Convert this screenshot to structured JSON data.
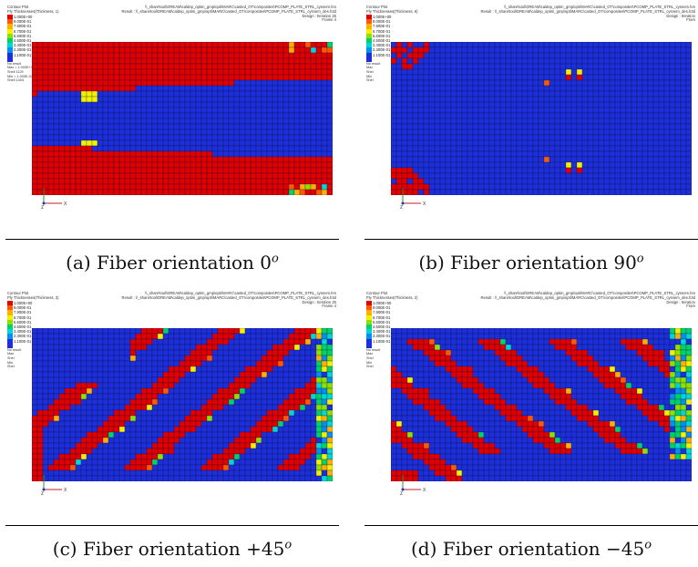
{
  "panels": [
    {
      "id": "a",
      "letter": "(a)",
      "caption": "(a) Fiber orientation 0",
      "superscript": "o",
      "header_left": [
        "Contour Plot",
        "Ply Thicknesses(Thickness, 1)"
      ],
      "header_right": [
        "\\\\_share\\tool\\DREAM\\caldep_optim_gmp\\opti\\MARC\\casted_OT\\composites\\PCOMP_PLATE_STRL_cysnem.hm",
        "Result : \\\\_share\\tool\\DREAM\\caldep_optim_gmp\\opti\\MARC\\casted_OT\\composites\\PCOMP_PLATE_STRL_cysnem_des.h3d",
        "Design : Iteration 25",
        "Frame 4"
      ],
      "legend_top": "1.000E+00",
      "legend_extra": [
        "No result",
        "Max = 1.000E+00",
        "Shell 1129",
        "Min = 1.000E-01",
        "Shell 1404"
      ]
    },
    {
      "id": "b",
      "letter": "(b)",
      "caption": "(b) Fiber orientation 90",
      "superscript": "o",
      "header_left": [
        "Contour Plot",
        "Ply Thicknesses(Thickness, 6)"
      ],
      "header_right": [
        "\\\\_share\\tool\\DREAM\\caldep_optim_gmp\\opti\\MARC\\casted_OT\\composites\\PCOMP_PLATE_STRL_cysnem.hm",
        "Result : \\\\_share\\tool\\DREAM\\caldep_optim_gmp\\opti\\MARC\\casted_OT\\composites\\PCOMP_PLATE_STRL_cysnem_des.h3d",
        "Design : Iteration",
        "Fram"
      ],
      "legend_top": "1.000E+00",
      "legend_extra": [
        "No result",
        "Max",
        "Shel",
        "Min",
        "Shel"
      ]
    },
    {
      "id": "c",
      "letter": "(c)",
      "caption": "(c) Fiber orientation +45",
      "superscript": "o",
      "header_left": [
        "Contour Plot",
        "Ply Thicknesses(Thickness, 3)"
      ],
      "header_right": [
        "\\\\_share\\tool\\DREAM\\caldep_optim_gmp\\opti\\MARC\\casted_OT\\composites\\PCOMP_PLATE_STRL_cysnem.hm",
        "Result : \\\\_share\\tool\\DREAM\\caldep_optim_gmp\\opti\\MARC\\casted_OT\\composites\\PCOMP_PLATE_STRL_cysnem_des.h3d",
        "Design : Iteration 25",
        "Frame 4"
      ],
      "legend_top": "1.000E+00",
      "legend_extra": [
        "No result",
        "Max",
        "Shel",
        "Min",
        "Shel"
      ]
    },
    {
      "id": "d",
      "letter": "(d)",
      "caption": "(d) Fiber orientation −45",
      "superscript": "o",
      "header_left": [
        "Contour Plot",
        "Ply Thicknesses(Thickness, 2)"
      ],
      "header_right": [
        "\\\\_share\\tool\\DREAM\\caldep_optim_gmp\\opti\\MARC\\casted_OT\\composites\\PCOMP_PLATE_STRL_cysnem.hm",
        "Result : \\\\_share\\tool\\DREAM\\caldep_optim_gmp\\opti\\MARC\\casted_OT\\composites\\PCOMP_PLATE_STRL_cysnem_des.h3d",
        "Design : Iteration",
        "Fram"
      ],
      "legend_top": "1.000E+00",
      "legend_extra": [
        "No result",
        "Max",
        "Shel",
        "Min",
        "Shel"
      ]
    }
  ],
  "legend": {
    "labels": [
      "1.000E+00",
      "9.000E-01",
      "7.900E-01",
      "6.700E-01",
      "5.600E-01",
      "4.500E-01",
      "3.400E-01",
      "2.300E-01",
      "1.100E-01"
    ],
    "colors": [
      "#e00000",
      "#ff5a00",
      "#ffb000",
      "#f2f200",
      "#8ee000",
      "#00d26a",
      "#00d6d6",
      "#0090f0",
      "#1c2fd8"
    ]
  },
  "triad_labels": {
    "axis_x": "X",
    "axis_y": "Y",
    "axis_z": "Z"
  },
  "colors": {
    "red": "#e00000",
    "blue": "#1c2fd8",
    "grid": "#0a0a3a"
  }
}
